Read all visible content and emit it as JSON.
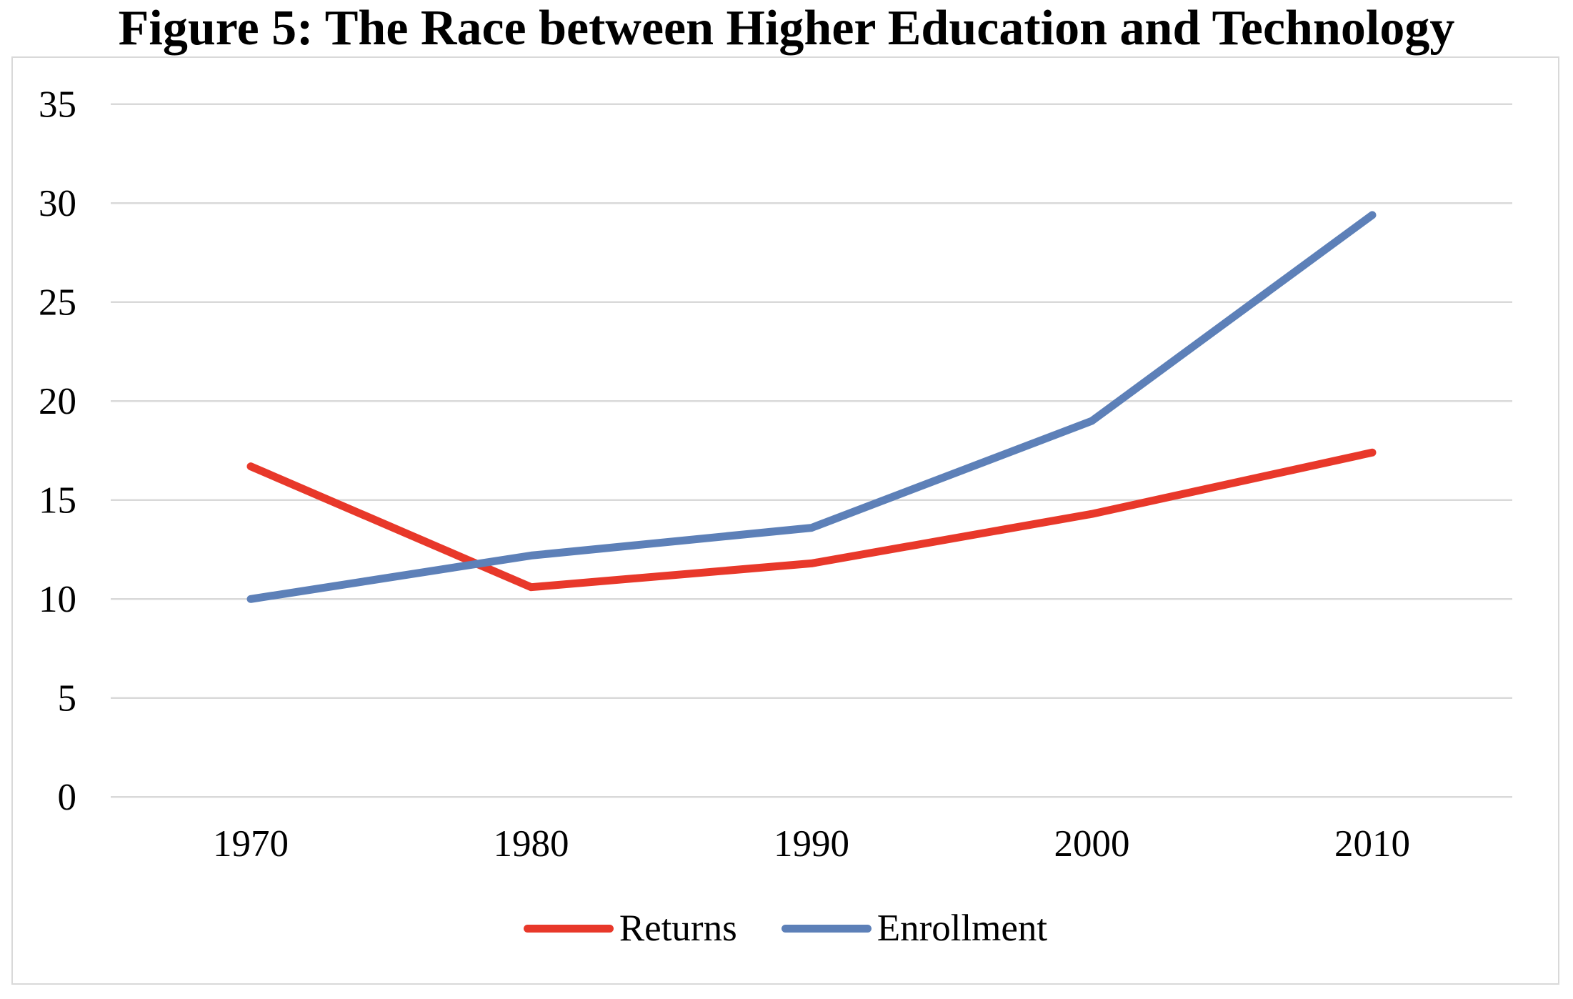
{
  "title": "Figure 5: The Race between Higher Education and Technology",
  "chart_data": {
    "type": "line",
    "title": "Figure 5: The Race between Higher Education and Technology",
    "categories": [
      "1970",
      "1980",
      "1990",
      "2000",
      "2010"
    ],
    "series": [
      {
        "name": "Returns",
        "color": "#e8382a",
        "values": [
          16.7,
          10.6,
          11.8,
          14.3,
          17.4
        ]
      },
      {
        "name": "Enrollment",
        "color": "#5d80b8",
        "values": [
          10.0,
          12.2,
          13.6,
          19.0,
          29.4
        ]
      }
    ],
    "xlabel": "",
    "ylabel": "",
    "ylim": [
      0,
      35
    ],
    "yticks": [
      0,
      5,
      10,
      15,
      20,
      25,
      30,
      35
    ],
    "grid": true,
    "gridline_color": "#d9d9d9",
    "plot_border_color": "#d9d9d9",
    "legend_position": "bottom"
  }
}
